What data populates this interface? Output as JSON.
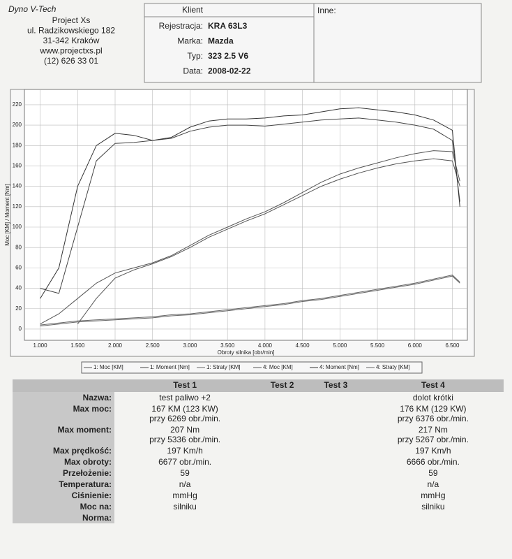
{
  "header": {
    "company": "Dyno V-Tech",
    "lines": [
      "Project Xs",
      "ul. Radzikowskiego 182",
      "31-342 Kraków",
      "www.projectxs.pl",
      "(12) 626 33 01"
    ]
  },
  "client": {
    "title": "Klient",
    "fields": [
      {
        "label": "Rejestracja:",
        "value": "KRA 63L3"
      },
      {
        "label": "Marka:",
        "value": "Mazda"
      },
      {
        "label": "Typ:",
        "value": "323 2.5 V6"
      },
      {
        "label": "Data:",
        "value": "2008-02-22"
      }
    ]
  },
  "other": {
    "title": "Inne:"
  },
  "chart_data": {
    "type": "line",
    "y_label": "Moc [KM] / Moment [Nm]",
    "x_label": "Obroty silnika [obr/min]",
    "x": [
      1000,
      1250,
      1500,
      1750,
      2000,
      2250,
      2500,
      2750,
      3000,
      3250,
      3500,
      3750,
      4000,
      4250,
      4500,
      4750,
      5000,
      5250,
      5500,
      5750,
      6000,
      6250,
      6500,
      6600
    ],
    "xlim": [
      790,
      6700
    ],
    "ylim": [
      -11,
      235
    ],
    "xticks": [
      {
        "value": 1000,
        "label": "1.000"
      },
      {
        "value": 1500,
        "label": "1.500"
      },
      {
        "value": 2000,
        "label": "2.000"
      },
      {
        "value": 2500,
        "label": "2.500"
      },
      {
        "value": 3000,
        "label": "3.000"
      },
      {
        "value": 3500,
        "label": "3.500"
      },
      {
        "value": 4000,
        "label": "4.000"
      },
      {
        "value": 4500,
        "label": "4.500"
      },
      {
        "value": 5000,
        "label": "5.000"
      },
      {
        "value": 5500,
        "label": "5.500"
      },
      {
        "value": 6000,
        "label": "6.000"
      },
      {
        "value": 6500,
        "label": "6.500"
      }
    ],
    "yticks": [
      0,
      20,
      40,
      60,
      80,
      100,
      120,
      140,
      160,
      180,
      200,
      220
    ],
    "grid": true,
    "series": [
      {
        "name": "1: Moc [KM]",
        "color": "#555555",
        "values": [
          null,
          null,
          5,
          30,
          50,
          58,
          64,
          71,
          80,
          90,
          98,
          106,
          113,
          122,
          131,
          140,
          147,
          153,
          158,
          162,
          165,
          167,
          165,
          140
        ]
      },
      {
        "name": "1: Moment [Nm]",
        "color": "#444444",
        "values": [
          40,
          35,
          100,
          165,
          182,
          183,
          185,
          187,
          194,
          198,
          200,
          200,
          199,
          201,
          203,
          205,
          206,
          207,
          205,
          203,
          200,
          196,
          185,
          125
        ]
      },
      {
        "name": "1: Straty [KM]",
        "color": "#666666",
        "values": [
          3,
          5,
          7,
          8,
          9,
          10,
          11,
          13,
          14,
          16,
          18,
          20,
          22,
          24,
          27,
          29,
          32,
          35,
          38,
          41,
          44,
          48,
          52,
          45
        ]
      },
      {
        "name": "4: Moc [KM]",
        "color": "#555555",
        "values": [
          5,
          15,
          30,
          45,
          55,
          60,
          65,
          72,
          82,
          92,
          100,
          108,
          115,
          124,
          134,
          144,
          152,
          158,
          163,
          168,
          172,
          175,
          174,
          145
        ]
      },
      {
        "name": "4: Moment [Nm]",
        "color": "#333333",
        "values": [
          30,
          60,
          140,
          180,
          192,
          190,
          185,
          188,
          198,
          204,
          206,
          206,
          207,
          209,
          210,
          213,
          216,
          217,
          215,
          213,
          210,
          205,
          195,
          120
        ]
      },
      {
        "name": "4: Straty [KM]",
        "color": "#666666",
        "values": [
          4,
          6,
          8,
          9,
          10,
          11,
          12,
          14,
          15,
          17,
          19,
          21,
          23,
          25,
          28,
          30,
          33,
          36,
          39,
          42,
          45,
          49,
          53,
          46
        ]
      }
    ]
  },
  "table": {
    "columns": [
      "Test 1",
      "Test 2",
      "Test 3",
      "Test 4"
    ],
    "rows": [
      [
        "Nazwa:",
        "test paliwo +2",
        null,
        null,
        "dolot krótki"
      ],
      [
        "Max moc:",
        "167 KM (123 KW)\nprzy 6269 obr./min.",
        null,
        null,
        "176 KM (129 KW)\nprzy 6376 obr./min."
      ],
      [
        "Max moment:",
        "207 Nm\nprzy 5336 obr./min.",
        null,
        null,
        "217 Nm\nprzy 5267 obr./min."
      ],
      [
        "Max prędkość:",
        "197 Km/h",
        null,
        null,
        "197 Km/h"
      ],
      [
        "Max obroty:",
        "6677 obr./min.",
        null,
        null,
        "6666 obr./min."
      ],
      [
        "Przełożenie:",
        59,
        null,
        null,
        59
      ],
      [
        "Temperatura:",
        "n/a",
        null,
        null,
        "n/a"
      ],
      [
        "Ciśnienie:",
        "mmHg",
        null,
        null,
        "mmHg"
      ],
      [
        "Moc na:",
        "silniku",
        null,
        null,
        "silniku"
      ],
      [
        "Norma:",
        null,
        null,
        null,
        null
      ]
    ]
  }
}
